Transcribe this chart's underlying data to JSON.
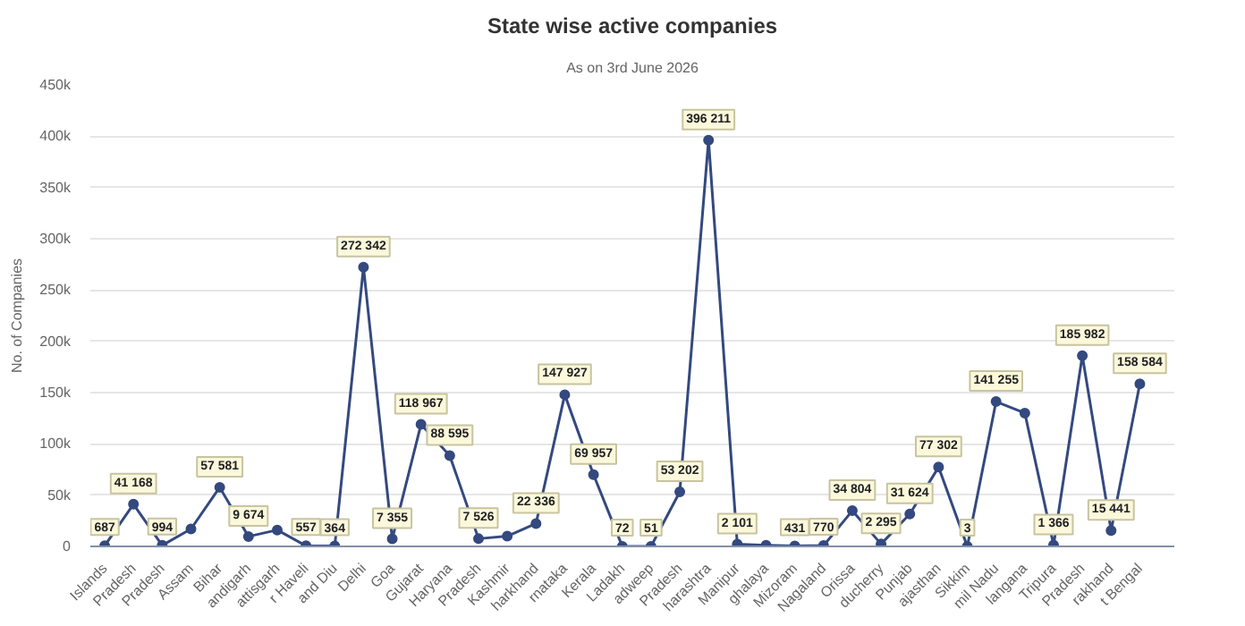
{
  "chart_data": {
    "type": "line",
    "title": "State wise active companies",
    "subtitle": "As on 3rd June 2026",
    "ylabel": "No. of Companies",
    "categories": [
      "Islands",
      "Pradesh",
      "Pradesh",
      "Assam",
      "Bihar",
      "andigarh",
      "attisgarh",
      "r Haveli",
      "and Diu",
      "Delhi",
      "Goa",
      "Gujarat",
      "Haryana",
      "Pradesh",
      "Kashmir",
      "harkhand",
      "rnataka",
      "Kerala",
      "Ladakh",
      "adweep",
      "Pradesh",
      "harashtra",
      "Manipur",
      "ghalaya",
      "Mizoram",
      "Nagaland",
      "Orissa",
      "ducherry",
      "Punjab",
      "ajasthan",
      "Sikkim",
      "mil Nadu",
      "langana",
      "Tripura",
      "Pradesh",
      "rakhand",
      "t Bengal"
    ],
    "series": [
      {
        "color": "#34497f",
        "values": [
          687,
          41168,
          994,
          17000,
          57581,
          9674,
          16000,
          557,
          364,
          272342,
          7355,
          118967,
          88595,
          7526,
          10000,
          22336,
          147927,
          69957,
          72,
          51,
          53202,
          396211,
          2101,
          1000,
          431,
          770,
          34804,
          2295,
          31624,
          77302,
          3,
          141255,
          130000,
          1366,
          185982,
          15441,
          158584
        ],
        "value_labels": [
          "687",
          "41 168",
          "994",
          null,
          "57 581",
          "9 674",
          null,
          "557",
          "364",
          "272 342",
          "7 355",
          "118 967",
          "88 595",
          "7 526",
          null,
          "22 336",
          "147 927",
          "69 957",
          "72",
          "51",
          "53 202",
          "396 211",
          "2 101",
          null,
          "431",
          "770",
          "34 804",
          "2 295",
          "31 624",
          "77 302",
          "3",
          "141 255",
          null,
          "1 366",
          "185 982",
          "15 441",
          "158 584"
        ]
      }
    ],
    "ylim": [
      0,
      450000
    ],
    "yticks": [
      0,
      {
        "value": 50000,
        "label": "50k"
      },
      {
        "value": 100000,
        "label": "100k"
      },
      {
        "value": 150000,
        "label": "150k"
      },
      {
        "value": 200000,
        "label": "200k"
      },
      {
        "value": 250000,
        "label": "250k"
      },
      {
        "value": 300000,
        "label": "300k"
      },
      {
        "value": 350000,
        "label": "350k"
      },
      {
        "value": 400000,
        "label": "400k"
      },
      {
        "value": 450000,
        "label": "450k"
      }
    ],
    "grid": "y",
    "marker": "circle",
    "line_style": "solid"
  }
}
